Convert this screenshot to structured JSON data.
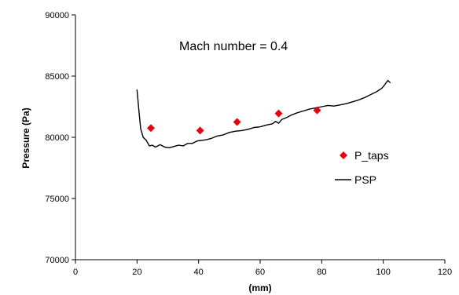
{
  "chart_data": {
    "type": "scatter",
    "title": "",
    "annotation": "Mach number = 0.4",
    "xlabel": "(mm)",
    "ylabel": "Pressure (Pa)",
    "xlim": [
      0,
      120
    ],
    "ylim": [
      70000,
      90000
    ],
    "x_ticks": [
      0,
      20,
      40,
      60,
      80,
      100,
      120
    ],
    "y_ticks": [
      70000,
      75000,
      80000,
      85000,
      90000
    ],
    "grid": false,
    "legend_position": "right",
    "series": [
      {
        "name": "P_taps",
        "kind": "markers",
        "marker": "diamond",
        "color": "#e8000b",
        "x": [
          24.5,
          40.5,
          52.5,
          66.0,
          78.5
        ],
        "y": [
          80750,
          80550,
          81250,
          81950,
          82200
        ]
      },
      {
        "name": "PSP",
        "kind": "line",
        "color": "#000000",
        "x": [
          20.0,
          20.6,
          21.2,
          22.0,
          23.0,
          24.0,
          25.0,
          26.0,
          27.5,
          29.0,
          30.5,
          32.0,
          33.5,
          35.0,
          36.5,
          38.0,
          39.5,
          41.0,
          42.5,
          44.0,
          46.0,
          48.0,
          50.0,
          52.0,
          54.0,
          56.0,
          58.0,
          60.0,
          62.0,
          64.0,
          65.0,
          66.0,
          67.0,
          68.5,
          70.0,
          72.0,
          74.0,
          76.0,
          78.0,
          80.0,
          82.0,
          84.0,
          86.0,
          88.0,
          90.0,
          92.0,
          94.0,
          96.0,
          98.0,
          99.5,
          100.5,
          101.5,
          102.3
        ],
        "y": [
          83900,
          82200,
          80700,
          80000,
          79750,
          79300,
          79350,
          79200,
          79400,
          79200,
          79150,
          79250,
          79350,
          79300,
          79500,
          79500,
          79700,
          79750,
          79800,
          79900,
          80100,
          80200,
          80400,
          80500,
          80550,
          80650,
          80800,
          80850,
          81000,
          81100,
          81300,
          81150,
          81450,
          81600,
          81800,
          82000,
          82150,
          82300,
          82400,
          82500,
          82600,
          82550,
          82650,
          82750,
          82900,
          83050,
          83250,
          83500,
          83750,
          84000,
          84300,
          84650,
          84450
        ]
      }
    ]
  }
}
